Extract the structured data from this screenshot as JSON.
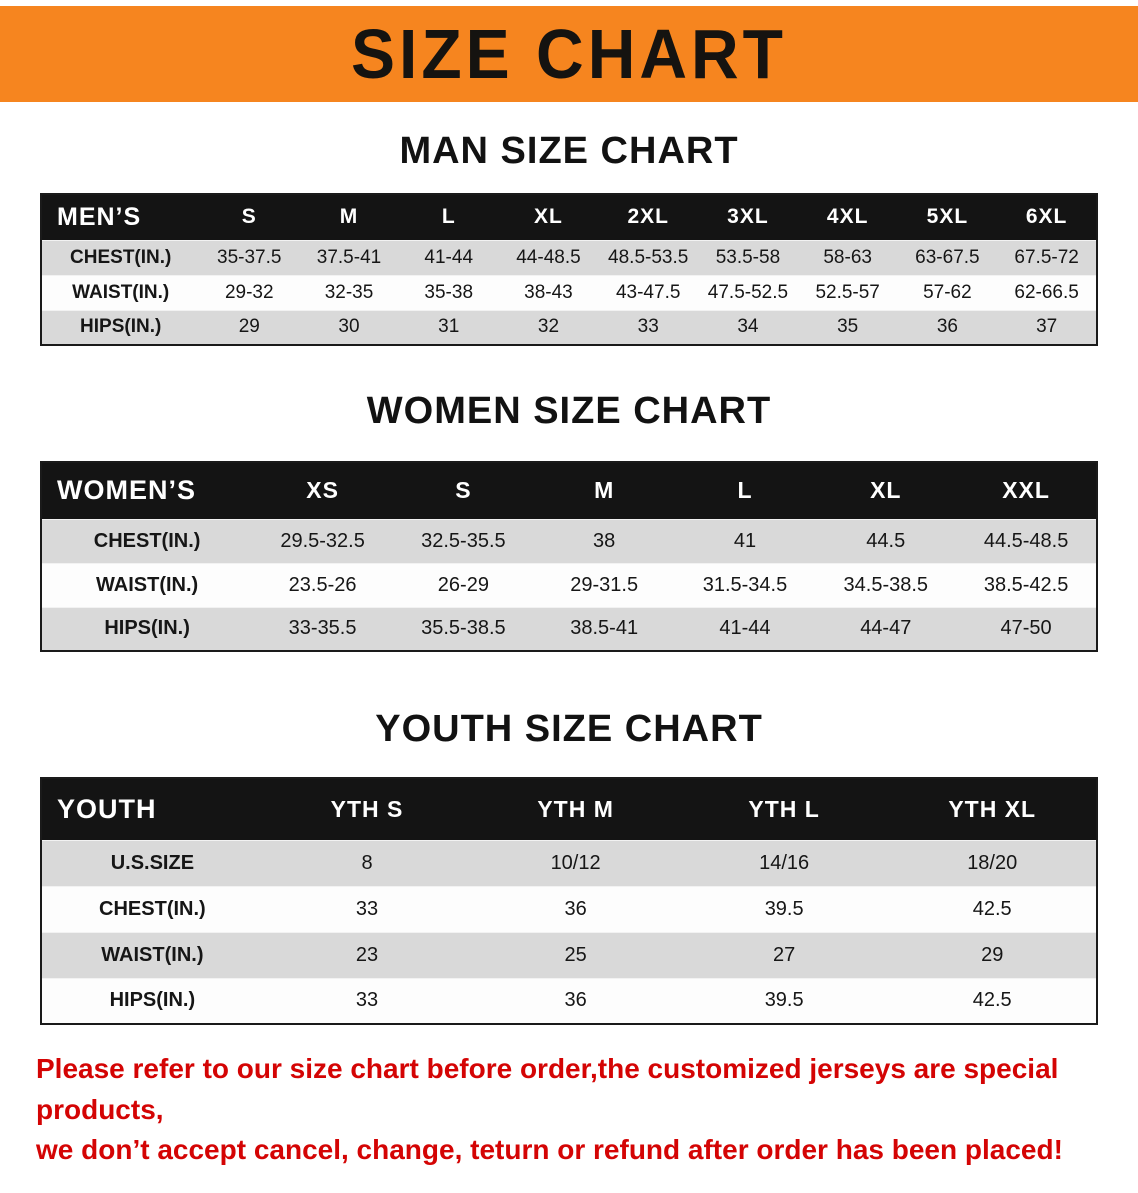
{
  "banner": {
    "title": "SIZE CHART"
  },
  "colors": {
    "banner_bg": "#f6851f",
    "table_header_bg": "#141414",
    "row_shade": "#d9d9d9",
    "notice_text": "#d40404"
  },
  "sections": [
    {
      "heading": "MAN SIZE CHART",
      "table": {
        "header": [
          "MEN’S",
          "S",
          "M",
          "L",
          "XL",
          "2XL",
          "3XL",
          "4XL",
          "5XL",
          "6XL"
        ],
        "rows": [
          [
            "CHEST(IN.)",
            "35-37.5",
            "37.5-41",
            "41-44",
            "44-48.5",
            "48.5-53.5",
            "53.5-58",
            "58-63",
            "63-67.5",
            "67.5-72"
          ],
          [
            "WAIST(IN.)",
            "29-32",
            "32-35",
            "35-38",
            "38-43",
            "43-47.5",
            "47.5-52.5",
            "52.5-57",
            "57-62",
            "62-66.5"
          ],
          [
            "HIPS(IN.)",
            "29",
            "30",
            "31",
            "32",
            "33",
            "34",
            "35",
            "36",
            "37"
          ]
        ]
      }
    },
    {
      "heading": "WOMEN SIZE CHART",
      "table": {
        "header": [
          "WOMEN’S",
          "XS",
          "S",
          "M",
          "L",
          "XL",
          "XXL"
        ],
        "rows": [
          [
            "CHEST(IN.)",
            "29.5-32.5",
            "32.5-35.5",
            "38",
            "41",
            "44.5",
            "44.5-48.5"
          ],
          [
            "WAIST(IN.)",
            "23.5-26",
            "26-29",
            "29-31.5",
            "31.5-34.5",
            "34.5-38.5",
            "38.5-42.5"
          ],
          [
            "HIPS(IN.)",
            "33-35.5",
            "35.5-38.5",
            "38.5-41",
            "41-44",
            "44-47",
            "47-50"
          ]
        ]
      }
    },
    {
      "heading": "YOUTH SIZE CHART",
      "table": {
        "header": [
          "YOUTH",
          "YTH S",
          "YTH M",
          "YTH L",
          "YTH XL"
        ],
        "rows": [
          [
            "U.S.SIZE",
            "8",
            "10/12",
            "14/16",
            "18/20"
          ],
          [
            "CHEST(IN.)",
            "33",
            "36",
            "39.5",
            "42.5"
          ],
          [
            "WAIST(IN.)",
            "23",
            "25",
            "27",
            "29"
          ],
          [
            "HIPS(IN.)",
            "33",
            "36",
            "39.5",
            "42.5"
          ]
        ]
      }
    }
  ],
  "footer": {
    "line1": "Please refer to our size chart before order,the customized jerseys are special products,",
    "line2": "we don’t accept cancel, change, teturn or refund after order has been placed!"
  }
}
